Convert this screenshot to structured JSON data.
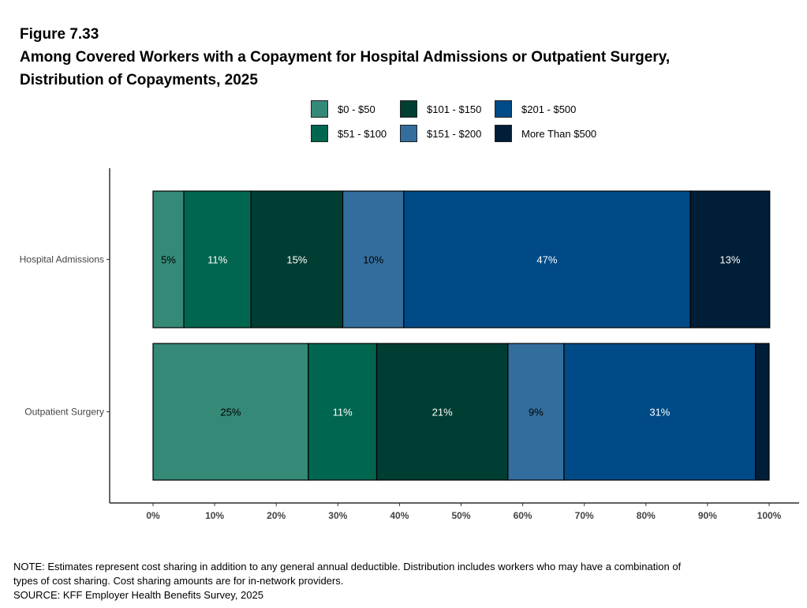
{
  "title": {
    "figure": "Figure 7.33",
    "line1": "Among Covered Workers with a Copayment for Hospital Admissions or Outpatient Surgery,",
    "line2": "Distribution of Copayments, 2025"
  },
  "note": {
    "line1": "NOTE: Estimates represent cost sharing in addition to any general annual deductible. Distribution includes workers who may have a combination of",
    "line2": "types of cost sharing. Cost sharing amounts are for in-network providers.",
    "source": "SOURCE: KFF Employer Health Benefits Survey, 2025"
  },
  "chart_data": {
    "type": "bar",
    "orientation": "horizontal",
    "stacked": true,
    "categories": [
      "Hospital Admissions",
      "Outpatient Surgery"
    ],
    "xlim": [
      0,
      100
    ],
    "x_ticks": [
      "0%",
      "10%",
      "20%",
      "30%",
      "40%",
      "50%",
      "60%",
      "70%",
      "80%",
      "90%",
      "100%"
    ],
    "grid": false,
    "legend_placement": "top",
    "series": [
      {
        "name": "$0 - $50",
        "color": "#358977",
        "label_color": "#000000",
        "values": [
          5.0,
          25.2
        ],
        "labels": [
          "5%",
          "25%"
        ]
      },
      {
        "name": "$51 - $100",
        "color": "#00664F",
        "label_color": "#ffffff",
        "values": [
          10.9,
          11.1
        ],
        "labels": [
          "11%",
          "11%"
        ]
      },
      {
        "name": "$101 - $150",
        "color": "#003D32",
        "label_color": "#ffffff",
        "values": [
          14.9,
          21.3
        ],
        "labels": [
          "15%",
          "21%"
        ]
      },
      {
        "name": "$151 - $200",
        "color": "#336D9E",
        "label_color": "#000000",
        "values": [
          9.9,
          9.1
        ],
        "labels": [
          "10%",
          "9%"
        ]
      },
      {
        "name": "$201 - $500",
        "color": "#004A87",
        "label_color": "#ffffff",
        "values": [
          46.5,
          31.1
        ],
        "labels": [
          "47%",
          "31%"
        ]
      },
      {
        "name": "More Than $500",
        "color": "#001E38",
        "label_color": "#ffffff",
        "values": [
          12.9,
          2.2
        ],
        "labels": [
          "13%",
          ""
        ]
      }
    ]
  }
}
